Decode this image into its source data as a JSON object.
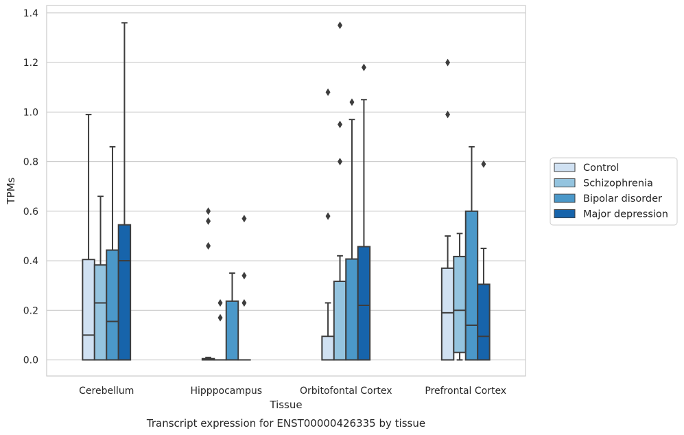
{
  "chart_data": {
    "type": "box",
    "caption": "Transcript expression for ENST00000426335 by tissue",
    "xlabel": "Tissue",
    "ylabel": "TPMs",
    "ylim": [
      -0.065,
      1.43
    ],
    "yticks": [
      0.0,
      0.2,
      0.4,
      0.6,
      0.8,
      1.0,
      1.2,
      1.4
    ],
    "ytick_labels": [
      "0.0",
      "0.2",
      "0.4",
      "0.6",
      "0.8",
      "1.0",
      "1.2",
      "1.4"
    ],
    "grid": "horizontal",
    "legend_position": "right",
    "categories": [
      "Cerebellum",
      "Hipppocampus",
      "Orbitofontal Cortex",
      "Prefrontal Cortex"
    ],
    "series": [
      {
        "name": "Control",
        "color": "#d0e1f2",
        "boxes": [
          {
            "min": 0.0,
            "q1": 0.0,
            "median": 0.1,
            "q3": 0.405,
            "max": 0.99,
            "outliers": []
          },
          {
            "min": 0.0,
            "q1": 0.0,
            "median": 0.002,
            "q3": 0.005,
            "max": 0.01,
            "outliers": [
              0.46,
              0.56,
              0.6
            ]
          },
          {
            "min": 0.0,
            "q1": 0.0,
            "median": 0.0,
            "q3": 0.095,
            "max": 0.23,
            "outliers": [
              0.58,
              1.08
            ]
          },
          {
            "min": 0.0,
            "q1": 0.0,
            "median": 0.19,
            "q3": 0.37,
            "max": 0.5,
            "outliers": [
              0.99,
              1.2
            ]
          }
        ]
      },
      {
        "name": "Schizophrenia",
        "color": "#94c4df",
        "boxes": [
          {
            "min": 0.0,
            "q1": 0.0,
            "median": 0.23,
            "q3": 0.383,
            "max": 0.66,
            "outliers": []
          },
          {
            "min": 0.0,
            "q1": 0.0,
            "median": 0.0,
            "q3": 0.0,
            "max": 0.0,
            "outliers": [
              0.17,
              0.23
            ]
          },
          {
            "min": 0.0,
            "q1": 0.0,
            "median": 0.0,
            "q3": 0.317,
            "max": 0.42,
            "outliers": [
              0.8,
              0.95,
              1.35
            ]
          },
          {
            "min": 0.0,
            "q1": 0.03,
            "median": 0.2,
            "q3": 0.417,
            "max": 0.51,
            "outliers": []
          }
        ]
      },
      {
        "name": "Bipolar disorder",
        "color": "#4b98c9",
        "boxes": [
          {
            "min": 0.0,
            "q1": 0.0,
            "median": 0.155,
            "q3": 0.443,
            "max": 0.86,
            "outliers": []
          },
          {
            "min": 0.0,
            "q1": 0.0,
            "median": 0.0,
            "q3": 0.237,
            "max": 0.35,
            "outliers": []
          },
          {
            "min": 0.0,
            "q1": 0.0,
            "median": 0.0,
            "q3": 0.407,
            "max": 0.97,
            "outliers": [
              1.04
            ]
          },
          {
            "min": 0.0,
            "q1": 0.0,
            "median": 0.14,
            "q3": 0.6,
            "max": 0.86,
            "outliers": []
          }
        ]
      },
      {
        "name": "Major depression",
        "color": "#1764ab",
        "boxes": [
          {
            "min": 0.0,
            "q1": 0.0,
            "median": 0.4,
            "q3": 0.545,
            "max": 1.36,
            "outliers": []
          },
          {
            "min": 0.0,
            "q1": 0.0,
            "median": 0.0,
            "q3": 0.0,
            "max": 0.0,
            "outliers": [
              0.23,
              0.34,
              0.57
            ]
          },
          {
            "min": 0.0,
            "q1": 0.0,
            "median": 0.22,
            "q3": 0.457,
            "max": 1.05,
            "outliers": [
              1.18
            ]
          },
          {
            "min": 0.0,
            "q1": 0.0,
            "median": 0.095,
            "q3": 0.305,
            "max": 0.45,
            "outliers": [
              0.79
            ]
          }
        ]
      }
    ]
  }
}
